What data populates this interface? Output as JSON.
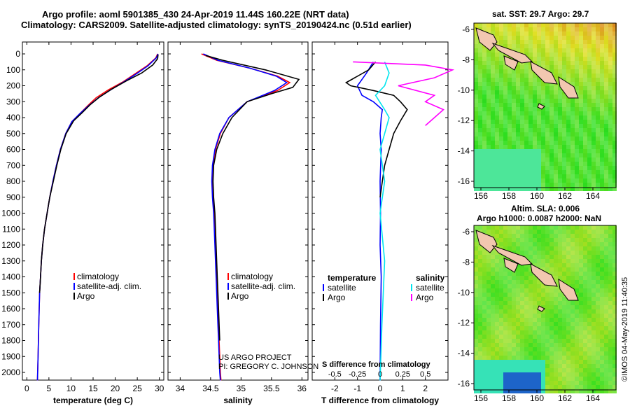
{
  "header": {
    "line1": "Argo profile: aoml 5901385_430 24-Apr-2019 11.44S 160.22E (NRT data)",
    "line2": "Climatology: CARS2009. Satellite-adjusted climatology: synTS_20190424.nc (0.51d earlier)"
  },
  "maps": {
    "top_title": "sat. SST: 29.7 Argo: 29.7",
    "bottom_title1": "Altim. SLA: 0.006",
    "bottom_title2": "Argo h1000: 0.0087 h2000: NaN",
    "lat_ticks": [
      "-6",
      "-8",
      "-10",
      "-12",
      "-14",
      "-16"
    ],
    "lon_ticks": [
      "156",
      "158",
      "160",
      "162",
      "164"
    ]
  },
  "credits": {
    "project": "US ARGO PROJECT",
    "pi": "PI: GREGORY C. JOHNSON",
    "imos": "©IMOS 04-May-2019 11:40:35"
  },
  "colors": {
    "climatology": "#ff0000",
    "satellite": "#0000ff",
    "argo": "#000000",
    "sal_satellite": "#00e5ee",
    "sal_argo": "#ff00ff"
  },
  "chart_data": [
    {
      "type": "line",
      "xlabel": "temperature (deg C)",
      "ylabel": "",
      "xlim": [
        -1,
        31
      ],
      "ylim": [
        2100,
        0
      ],
      "xticks": [
        0,
        5,
        10,
        15,
        20,
        25,
        30
      ],
      "yticks": [
        0,
        100,
        200,
        300,
        400,
        500,
        600,
        700,
        800,
        900,
        1000,
        1100,
        1200,
        1300,
        1400,
        1500,
        1600,
        1700,
        1800,
        1900,
        2000
      ],
      "legend": [
        "climatology",
        "satellite-adj. clim.",
        "Argo"
      ],
      "series": [
        {
          "name": "climatology",
          "x": [
            29.6,
            29.2,
            27.2,
            24.5,
            21.8,
            18.5,
            15.7,
            13.8,
            12.0,
            10.2,
            8.8,
            7.6,
            6.7,
            5.9,
            5.2,
            4.6,
            4.0,
            3.6,
            3.3,
            3.1,
            2.9,
            2.7,
            2.55,
            2.4
          ],
          "y": [
            0,
            25,
            75,
            125,
            175,
            225,
            275,
            325,
            375,
            425,
            500,
            600,
            700,
            800,
            900,
            1000,
            1100,
            1200,
            1300,
            1400,
            1500,
            1700,
            1900,
            2050
          ]
        },
        {
          "name": "satellite-adj. clim.",
          "x": [
            29.7,
            29.3,
            27.4,
            24.8,
            22.0,
            19.0,
            16.2,
            14.0,
            12.0,
            10.2,
            8.8,
            7.6,
            6.7,
            5.9,
            5.2,
            4.6,
            4.0,
            3.6,
            3.3,
            3.1,
            2.9,
            2.7,
            2.55,
            2.4
          ],
          "y": [
            0,
            25,
            75,
            125,
            175,
            225,
            275,
            325,
            375,
            425,
            500,
            600,
            700,
            800,
            900,
            1000,
            1100,
            1200,
            1300,
            1400,
            1500,
            1700,
            1900,
            2050
          ]
        },
        {
          "name": "Argo",
          "x": [
            29.7,
            29.6,
            28.5,
            26.0,
            22.5,
            19.3,
            16.5,
            14.3,
            12.5,
            10.6,
            8.9,
            7.7,
            6.8,
            6.0,
            5.2,
            4.6,
            4.0,
            3.6,
            3.3,
            3.1,
            2.9
          ],
          "y": [
            5,
            30,
            70,
            120,
            170,
            220,
            270,
            320,
            370,
            420,
            500,
            600,
            700,
            800,
            900,
            1000,
            1100,
            1200,
            1300,
            1400,
            1500
          ]
        }
      ]
    },
    {
      "type": "line",
      "xlabel": "salinity",
      "ylabel": "",
      "xlim": [
        33.8,
        36.1
      ],
      "ylim": [
        2100,
        0
      ],
      "xticks": [
        34,
        34.5,
        35,
        35.5,
        36
      ],
      "legend": [
        "climatology",
        "satellite-adj. clim.",
        "Argo"
      ],
      "series": [
        {
          "name": "climatology",
          "x": [
            34.35,
            34.6,
            35.15,
            35.6,
            35.8,
            35.6,
            35.1,
            34.8,
            34.66,
            34.58,
            34.54,
            34.53,
            34.54,
            34.56,
            34.58,
            34.6,
            34.62,
            34.64,
            34.66,
            34.67
          ],
          "y": [
            0,
            40,
            90,
            140,
            180,
            230,
            300,
            400,
            500,
            600,
            700,
            800,
            900,
            1000,
            1200,
            1400,
            1600,
            1800,
            2000,
            2050
          ]
        },
        {
          "name": "satellite-adj. clim.",
          "x": [
            34.38,
            34.62,
            35.15,
            35.58,
            35.75,
            35.55,
            35.1,
            34.8,
            34.65,
            34.57,
            34.53,
            34.52,
            34.53,
            34.55,
            34.57,
            34.59,
            34.61,
            34.63,
            34.65,
            34.66
          ],
          "y": [
            0,
            40,
            90,
            140,
            180,
            230,
            300,
            400,
            500,
            600,
            700,
            800,
            900,
            1000,
            1200,
            1400,
            1600,
            1800,
            2000,
            2050
          ]
        },
        {
          "name": "Argo",
          "x": [
            34.42,
            34.7,
            35.4,
            35.95,
            35.85,
            35.5,
            35.1,
            34.85,
            34.7,
            34.6,
            34.55,
            34.54,
            34.55,
            34.57,
            34.59,
            34.61,
            34.63,
            34.65
          ],
          "y": [
            10,
            40,
            100,
            160,
            210,
            250,
            300,
            400,
            500,
            600,
            700,
            800,
            900,
            1000,
            1200,
            1400,
            1600,
            1800
          ]
        }
      ]
    },
    {
      "type": "line",
      "xlabel": "T difference from climatology",
      "xlabel_top": "S difference from climatology",
      "xlim": [
        -3,
        3
      ],
      "ylim": [
        2100,
        0
      ],
      "xticks": [
        -2,
        -1,
        0,
        1,
        2
      ],
      "xticks_top": [
        "-0.5",
        "-0.25",
        "0",
        "0.25",
        "0.5"
      ],
      "legend_titles": [
        "temperature",
        "salinity"
      ],
      "legend": [
        "satellite",
        "Argo",
        "satellite",
        "Argo"
      ],
      "series": [
        {
          "name": "temperature satellite",
          "x": [
            -0.3,
            -0.6,
            -1.0,
            -0.8,
            -0.3,
            0.1,
            0.05,
            0.0,
            0.05,
            0.0,
            0.02,
            0.0,
            0.05,
            0.02,
            0.0
          ],
          "y": [
            50,
            120,
            200,
            260,
            300,
            350,
            400,
            500,
            600,
            800,
            1000,
            1200,
            1400,
            1700,
            2050
          ]
        },
        {
          "name": "temperature Argo",
          "x": [
            -0.2,
            -0.5,
            -1.5,
            -1.3,
            -0.3,
            0.6,
            0.9,
            1.2,
            0.9,
            0.6,
            0.4,
            0.2,
            0.1,
            0.0
          ],
          "y": [
            50,
            100,
            180,
            200,
            230,
            260,
            300,
            350,
            420,
            500,
            600,
            700,
            800,
            900
          ]
        },
        {
          "name": "salinity satellite",
          "x": [
            0.05,
            0.1,
            0.05,
            -0.05,
            0.05,
            0.1,
            0.05,
            0.0,
            0.05,
            0.0,
            0.05,
            0.02,
            0.0
          ],
          "y": [
            50,
            120,
            200,
            260,
            350,
            400,
            500,
            600,
            800,
            1000,
            1300,
            1700,
            2050
          ]
        },
        {
          "name": "salinity Argo",
          "x": [
            -0.3,
            0.5,
            0.8,
            0.6,
            0.2,
            0.6,
            0.5,
            0.7,
            0.6,
            0.5
          ],
          "y": [
            50,
            70,
            100,
            150,
            200,
            260,
            300,
            350,
            400,
            450
          ]
        }
      ]
    }
  ]
}
